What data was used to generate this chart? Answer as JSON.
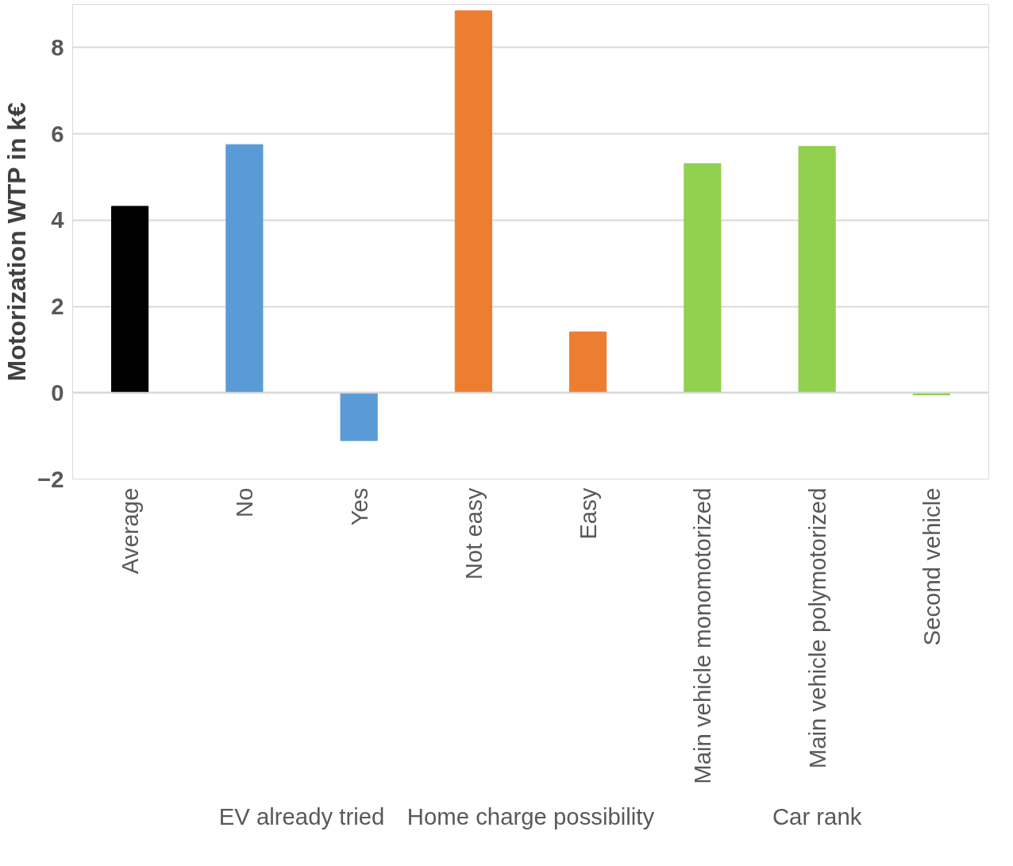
{
  "chart_data": {
    "type": "bar",
    "ylabel": "Motorization WTP in k€",
    "categories": [
      "Average",
      "No",
      "Yes",
      "Not easy",
      "Easy",
      "Main vehicle monomotorized",
      "Main vehicle polymotorized",
      "Second vehicle"
    ],
    "values": [
      4.32,
      5.75,
      -1.11,
      8.85,
      1.41,
      5.31,
      5.71,
      -0.05
    ],
    "colors": [
      "#000000",
      "#5b9bd5",
      "#5b9bd5",
      "#ed7d31",
      "#ed7d31",
      "#92d050",
      "#92d050",
      "#92d050"
    ],
    "ylim": [
      -2,
      9
    ],
    "yticks": [
      -2,
      0,
      2,
      4,
      6,
      8
    ],
    "grid": "y",
    "annotations": [
      "EV already tried",
      "Home charge possibility",
      "Car rank"
    ]
  }
}
